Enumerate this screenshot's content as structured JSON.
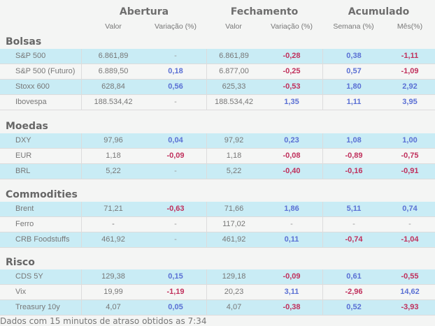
{
  "header": {
    "groups": [
      "Abertura",
      "Fechamento",
      "Acumulado"
    ],
    "columns": [
      "Valor",
      "Variação (%)",
      "Valor",
      "Variação (%)",
      "Semana (%)",
      "Mês(%)"
    ]
  },
  "colors": {
    "positive": "#5a70d4",
    "negative": "#c0305c",
    "row_highlight": "#c9ecf5",
    "row_alt": "#f5f6f5"
  },
  "sections": [
    {
      "title": "Bolsas",
      "rows": [
        [
          "S&P 500",
          "6.861,89",
          "-",
          "6.861,89",
          "-0,28",
          "0,38",
          "-1,11"
        ],
        [
          "S&P 500 (Futuro)",
          "6.889,50",
          "0,18",
          "6.877,00",
          "-0,25",
          "0,57",
          "-1,09"
        ],
        [
          "Stoxx 600",
          "628,84",
          "0,56",
          "625,33",
          "-0,53",
          "1,80",
          "2,92"
        ],
        [
          "Ibovespa",
          "188.534,42",
          "-",
          "188.534,42",
          "1,35",
          "1,11",
          "3,95"
        ]
      ]
    },
    {
      "title": "Moedas",
      "rows": [
        [
          "DXY",
          "97,96",
          "0,04",
          "97,92",
          "0,23",
          "1,08",
          "1,00"
        ],
        [
          "EUR",
          "1,18",
          "-0,09",
          "1,18",
          "-0,08",
          "-0,89",
          "-0,75"
        ],
        [
          "BRL",
          "5,22",
          "-",
          "5,22",
          "-0,40",
          "-0,16",
          "-0,91"
        ]
      ]
    },
    {
      "title": "Commodities",
      "rows": [
        [
          "Brent",
          "71,21",
          "-0,63",
          "71,66",
          "1,86",
          "5,11",
          "0,74"
        ],
        [
          "Ferro",
          "-",
          "-",
          "117,02",
          "-",
          "-",
          "-"
        ],
        [
          "CRB Foodstuffs",
          "461,92",
          "-",
          "461,92",
          "0,11",
          "-0,74",
          "-1,04"
        ]
      ]
    },
    {
      "title": "Risco",
      "rows": [
        [
          "CDS 5Y",
          "129,38",
          "0,15",
          "129,18",
          "-0,09",
          "0,61",
          "-0,55"
        ],
        [
          "Vix",
          "19,99",
          "-1,19",
          "20,23",
          "3,11",
          "-2,96",
          "14,62"
        ],
        [
          "Treasury 10y",
          "4,07",
          "0,05",
          "4,07",
          "-0,38",
          "0,52",
          "-3,93"
        ]
      ]
    }
  ],
  "footer": "Dados com 15 minutos de atraso obtidos as 7:34"
}
